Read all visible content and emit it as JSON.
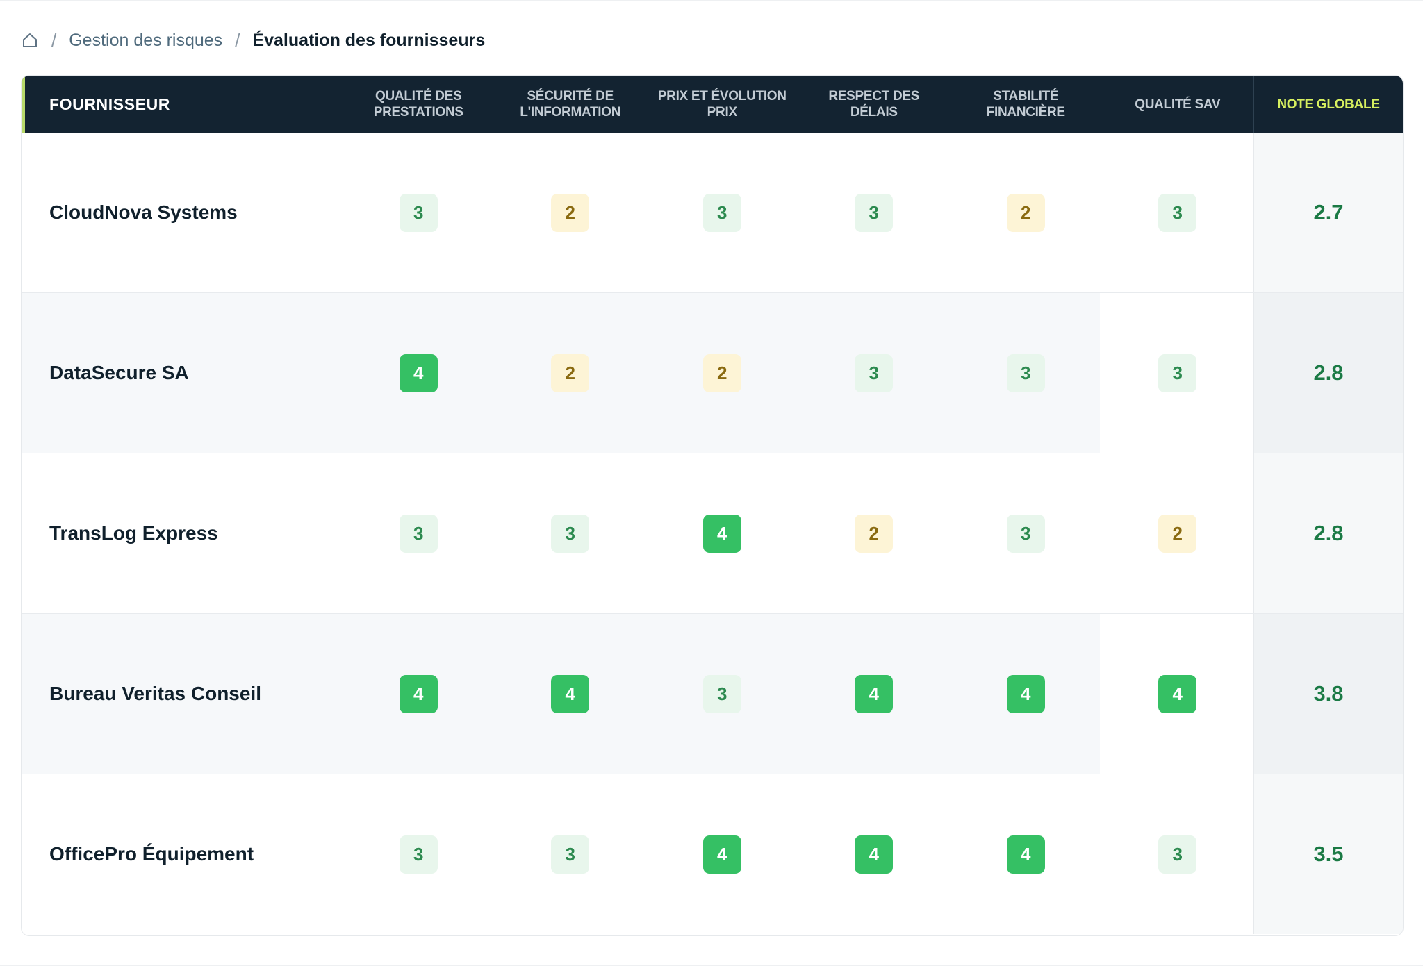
{
  "breadcrumb": {
    "home_icon": "home-icon",
    "separator": "/",
    "items": [
      {
        "label": "Gestion des risques"
      },
      {
        "label": "Évaluation des fournisseurs"
      }
    ]
  },
  "table": {
    "columns": {
      "supplier": "FOURNISSEUR",
      "criteria": [
        "QUALITÉ DES PRESTATIONS",
        "SÉCURITÉ DE L'INFORMATION",
        "PRIX ET ÉVOLUTION PRIX",
        "RESPECT DES DÉLAIS",
        "STABILITÉ FINANCIÈRE",
        "QUALITÉ SAV"
      ],
      "global": "NOTE GLOBALE"
    },
    "rows": [
      {
        "supplier": "CloudNova Systems",
        "scores": [
          "3",
          "2",
          "3",
          "3",
          "2",
          "3"
        ],
        "global": "2.7"
      },
      {
        "supplier": "DataSecure SA",
        "scores": [
          "4",
          "2",
          "2",
          "3",
          "3",
          "3"
        ],
        "global": "2.8"
      },
      {
        "supplier": "TransLog Express",
        "scores": [
          "3",
          "3",
          "4",
          "2",
          "3",
          "2"
        ],
        "global": "2.8"
      },
      {
        "supplier": "Bureau Veritas Conseil",
        "scores": [
          "4",
          "4",
          "3",
          "4",
          "4",
          "4"
        ],
        "global": "3.8"
      },
      {
        "supplier": "OfficePro Équipement",
        "scores": [
          "3",
          "3",
          "4",
          "4",
          "4",
          "3"
        ],
        "global": "3.5"
      }
    ]
  },
  "colors": {
    "header_bg": "#132331",
    "global_header_text": "#d6ef5f",
    "score_4_bg": "#35c064",
    "score_3_bg": "#e8f6ec",
    "score_2_bg": "#fdf4d6",
    "global_text": "#1b7a45"
  }
}
